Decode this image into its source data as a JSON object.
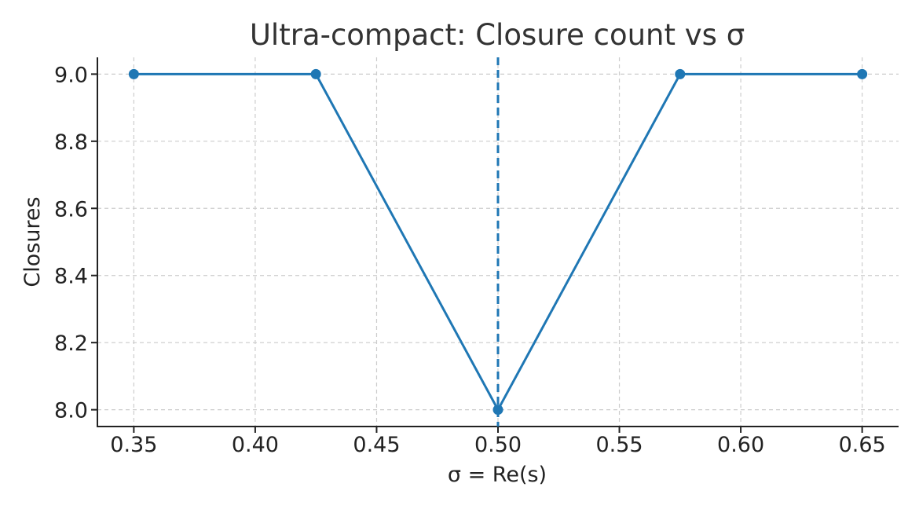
{
  "chart_data": {
    "type": "line",
    "title": "Ultra-compact: Closure count vs σ",
    "xlabel": "σ = Re(s)",
    "ylabel": "Closures",
    "x": [
      0.35,
      0.425,
      0.5,
      0.575,
      0.65
    ],
    "series": [
      {
        "values": [
          9.0,
          9.0,
          8.0,
          9.0,
          9.0
        ],
        "color": "#1f77b4",
        "marker": "circle"
      }
    ],
    "xlim": [
      0.335,
      0.665
    ],
    "ylim": [
      7.95,
      9.05
    ],
    "xticks": [
      0.35,
      0.4,
      0.45,
      0.5,
      0.55,
      0.6,
      0.65
    ],
    "xtick_labels": [
      "0.35",
      "0.40",
      "0.45",
      "0.50",
      "0.55",
      "0.60",
      "0.65"
    ],
    "yticks": [
      8.0,
      8.2,
      8.4,
      8.6,
      8.8,
      9.0
    ],
    "ytick_labels": [
      "8.0",
      "8.2",
      "8.4",
      "8.6",
      "8.8",
      "9.0"
    ],
    "reference_line": {
      "orientation": "vertical",
      "x": 0.5,
      "style": "dashed",
      "color": "#1f77b4"
    },
    "grid": true,
    "legend": false
  }
}
